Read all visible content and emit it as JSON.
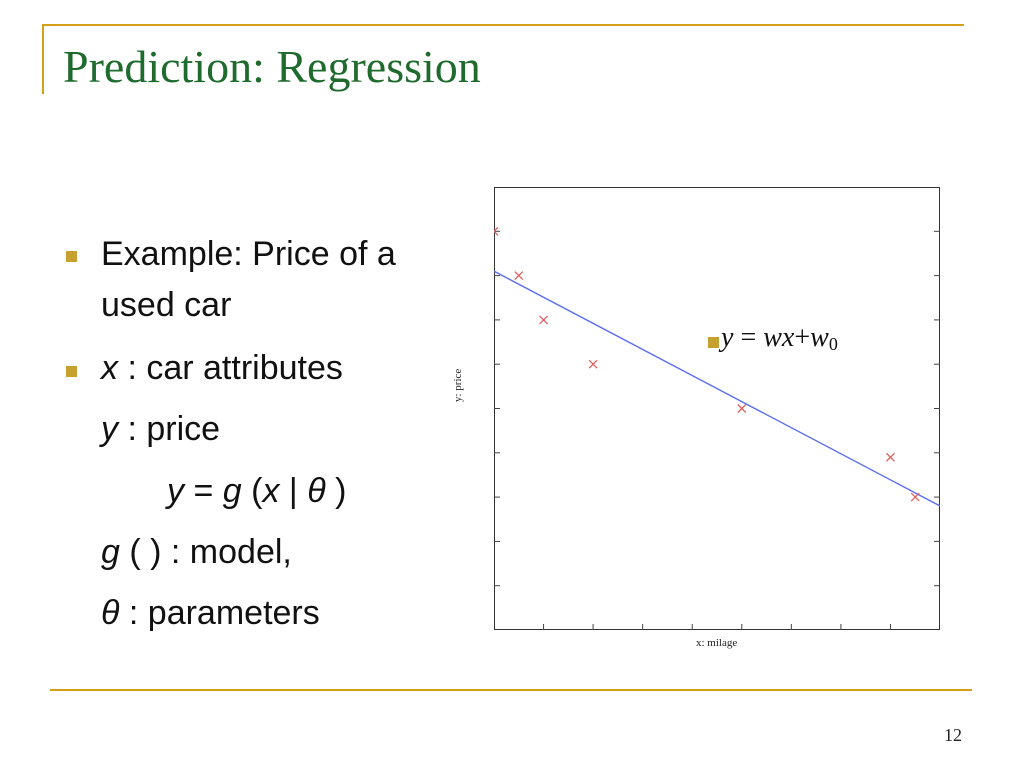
{
  "slide": {
    "title": "Prediction: Regression",
    "page_number": "12"
  },
  "bullets": [
    {
      "line1": "Example: Price of a",
      "line2": "used car"
    },
    {
      "var": "x",
      "text": " : car attributes"
    }
  ],
  "sublines": {
    "y_var": "y",
    "y_text": " : price",
    "formula": {
      "y": "y",
      "eq": " = ",
      "g": "g",
      "open": " (",
      "x": "x",
      "bar": " | ",
      "theta": "θ",
      "close": " )"
    },
    "model": {
      "g": "g",
      "text": " ( ) : model,"
    },
    "params": {
      "theta": "θ",
      "text": " : parameters"
    }
  },
  "equation": {
    "y": "y",
    "eq": " = ",
    "wx": "wx",
    "plus": "+",
    "w": "w",
    "sub": "0"
  },
  "colors": {
    "title": "#1f6b2e",
    "rule": "#d4a017",
    "bullet": "#c7a130",
    "fit_line": "#5a6ff0",
    "points": "#e06060"
  },
  "chart_data": {
    "type": "scatter",
    "title": "",
    "xlabel": "x: milage",
    "ylabel": "y: price",
    "xlim": [
      0,
      9
    ],
    "ylim": [
      0,
      10
    ],
    "points": [
      {
        "x": 0.0,
        "y": 9.0
      },
      {
        "x": 0.5,
        "y": 8.0
      },
      {
        "x": 1.0,
        "y": 7.0
      },
      {
        "x": 2.0,
        "y": 6.0
      },
      {
        "x": 5.0,
        "y": 5.0
      },
      {
        "x": 8.0,
        "y": 3.9
      },
      {
        "x": 8.5,
        "y": 3.0
      }
    ],
    "fit_line": {
      "x": [
        0,
        9
      ],
      "y": [
        8.1,
        2.8
      ]
    },
    "x_ticks": 9,
    "y_ticks": 10,
    "grid": false
  }
}
